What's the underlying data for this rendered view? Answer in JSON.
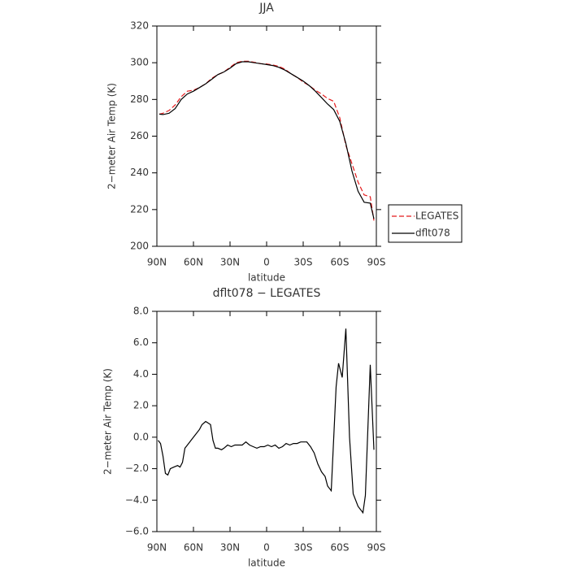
{
  "chart_data": [
    {
      "type": "line",
      "title": "JJA",
      "xlabel": "latitude",
      "ylabel": "2−meter Air Temp (K)",
      "xlim": [
        90,
        -90
      ],
      "ylim": [
        200,
        320
      ],
      "xticks": [
        {
          "value": 90,
          "label": "90N"
        },
        {
          "value": 60,
          "label": "60N"
        },
        {
          "value": 30,
          "label": "30N"
        },
        0,
        {
          "value": -30,
          "label": "30S"
        },
        {
          "value": -60,
          "label": "60S"
        },
        {
          "value": -90,
          "label": "90S"
        }
      ],
      "yticks": [
        200,
        220,
        240,
        260,
        280,
        300,
        320
      ],
      "legend": true,
      "series": [
        {
          "name": "LEGATES",
          "color": "#e41a1c",
          "dash": true,
          "x": [
            88,
            85,
            80,
            75,
            70,
            65,
            60,
            55,
            50,
            45,
            40,
            35,
            30,
            25,
            20,
            15,
            10,
            5,
            0,
            -5,
            -10,
            -15,
            -20,
            -25,
            -30,
            -35,
            -40,
            -45,
            -50,
            -55,
            -60,
            -65,
            -70,
            -75,
            -80,
            -85,
            -88
          ],
          "values": [
            272,
            272.5,
            274,
            277,
            281.5,
            284.5,
            285,
            286.5,
            288.5,
            291.5,
            293.5,
            295,
            297.5,
            300,
            300.8,
            300.8,
            300.2,
            299.5,
            299.3,
            298.8,
            298,
            296.5,
            294,
            292,
            289.5,
            287.5,
            285,
            283,
            280.5,
            279,
            270,
            255,
            245,
            235,
            228,
            227,
            214
          ]
        },
        {
          "name": "dflt078",
          "color": "#000000",
          "dash": false,
          "x": [
            88,
            85,
            80,
            75,
            70,
            65,
            60,
            55,
            50,
            45,
            40,
            35,
            30,
            25,
            20,
            15,
            10,
            5,
            0,
            -5,
            -10,
            -15,
            -20,
            -25,
            -30,
            -35,
            -40,
            -45,
            -50,
            -55,
            -60,
            -65,
            -70,
            -75,
            -80,
            -85,
            -88
          ],
          "values": [
            272,
            271.8,
            272.5,
            275,
            280,
            283,
            284.5,
            286.5,
            288.5,
            291,
            293.5,
            295,
            297,
            299.5,
            300.5,
            300.5,
            300,
            299.5,
            299,
            298.5,
            297.5,
            296,
            294,
            292,
            290,
            287.5,
            284.5,
            281,
            277.5,
            274.5,
            268,
            256,
            241,
            230,
            224,
            223.5,
            215
          ]
        }
      ]
    },
    {
      "type": "line",
      "title": "dflt078 − LEGATES",
      "xlabel": "latitude",
      "ylabel": "2−meter Air Temp (K)",
      "xlim": [
        90,
        -90
      ],
      "ylim": [
        -6,
        8
      ],
      "xticks": [
        {
          "value": 90,
          "label": "90N"
        },
        {
          "value": 60,
          "label": "60N"
        },
        {
          "value": 30,
          "label": "30N"
        },
        0,
        {
          "value": -30,
          "label": "30S"
        },
        {
          "value": -60,
          "label": "60S"
        },
        {
          "value": -90,
          "label": "90S"
        }
      ],
      "yticks": [
        {
          "value": -6,
          "label": "−6.0"
        },
        {
          "value": -4,
          "label": "−4.0"
        },
        {
          "value": -2,
          "label": "−2.0"
        },
        {
          "value": 0,
          "label": "0.0"
        },
        {
          "value": 2,
          "label": "2.0"
        },
        {
          "value": 4,
          "label": "4.0"
        },
        {
          "value": 6,
          "label": "6.0"
        },
        {
          "value": 8,
          "label": "8.0"
        }
      ],
      "legend": false,
      "series": [
        {
          "color": "#000000",
          "dash": false,
          "x": [
            89,
            87,
            85,
            83,
            81,
            79,
            76,
            73,
            71,
            69,
            67,
            64,
            61,
            58,
            55,
            53,
            50,
            48,
            46,
            44,
            42,
            40,
            37,
            35,
            32,
            29,
            26,
            23,
            20,
            17,
            14,
            11,
            8,
            5,
            2,
            -1,
            -4,
            -7,
            -10,
            -13,
            -16,
            -19,
            -22,
            -25,
            -28,
            -30,
            -33,
            -36,
            -39,
            -42,
            -45,
            -48,
            -50,
            -53,
            -57,
            -59,
            -62,
            -65,
            -68,
            -71,
            -75,
            -79,
            -81,
            -85,
            -88
          ],
          "values": [
            -0.2,
            -0.4,
            -1.2,
            -2.3,
            -2.4,
            -2.0,
            -1.9,
            -1.8,
            -1.9,
            -1.6,
            -0.7,
            -0.4,
            -0.1,
            0.2,
            0.5,
            0.8,
            1.0,
            0.9,
            0.8,
            -0.2,
            -0.7,
            -0.7,
            -0.8,
            -0.7,
            -0.5,
            -0.6,
            -0.5,
            -0.5,
            -0.5,
            -0.3,
            -0.5,
            -0.6,
            -0.7,
            -0.6,
            -0.6,
            -0.5,
            -0.6,
            -0.5,
            -0.7,
            -0.6,
            -0.4,
            -0.5,
            -0.4,
            -0.4,
            -0.3,
            -0.3,
            -0.3,
            -0.6,
            -1.0,
            -1.7,
            -2.2,
            -2.5,
            -3.1,
            -3.4,
            3.2,
            4.7,
            3.8,
            6.9,
            0.0,
            -3.6,
            -4.4,
            -4.8,
            -3.7,
            4.6,
            -0.8
          ]
        }
      ]
    }
  ]
}
